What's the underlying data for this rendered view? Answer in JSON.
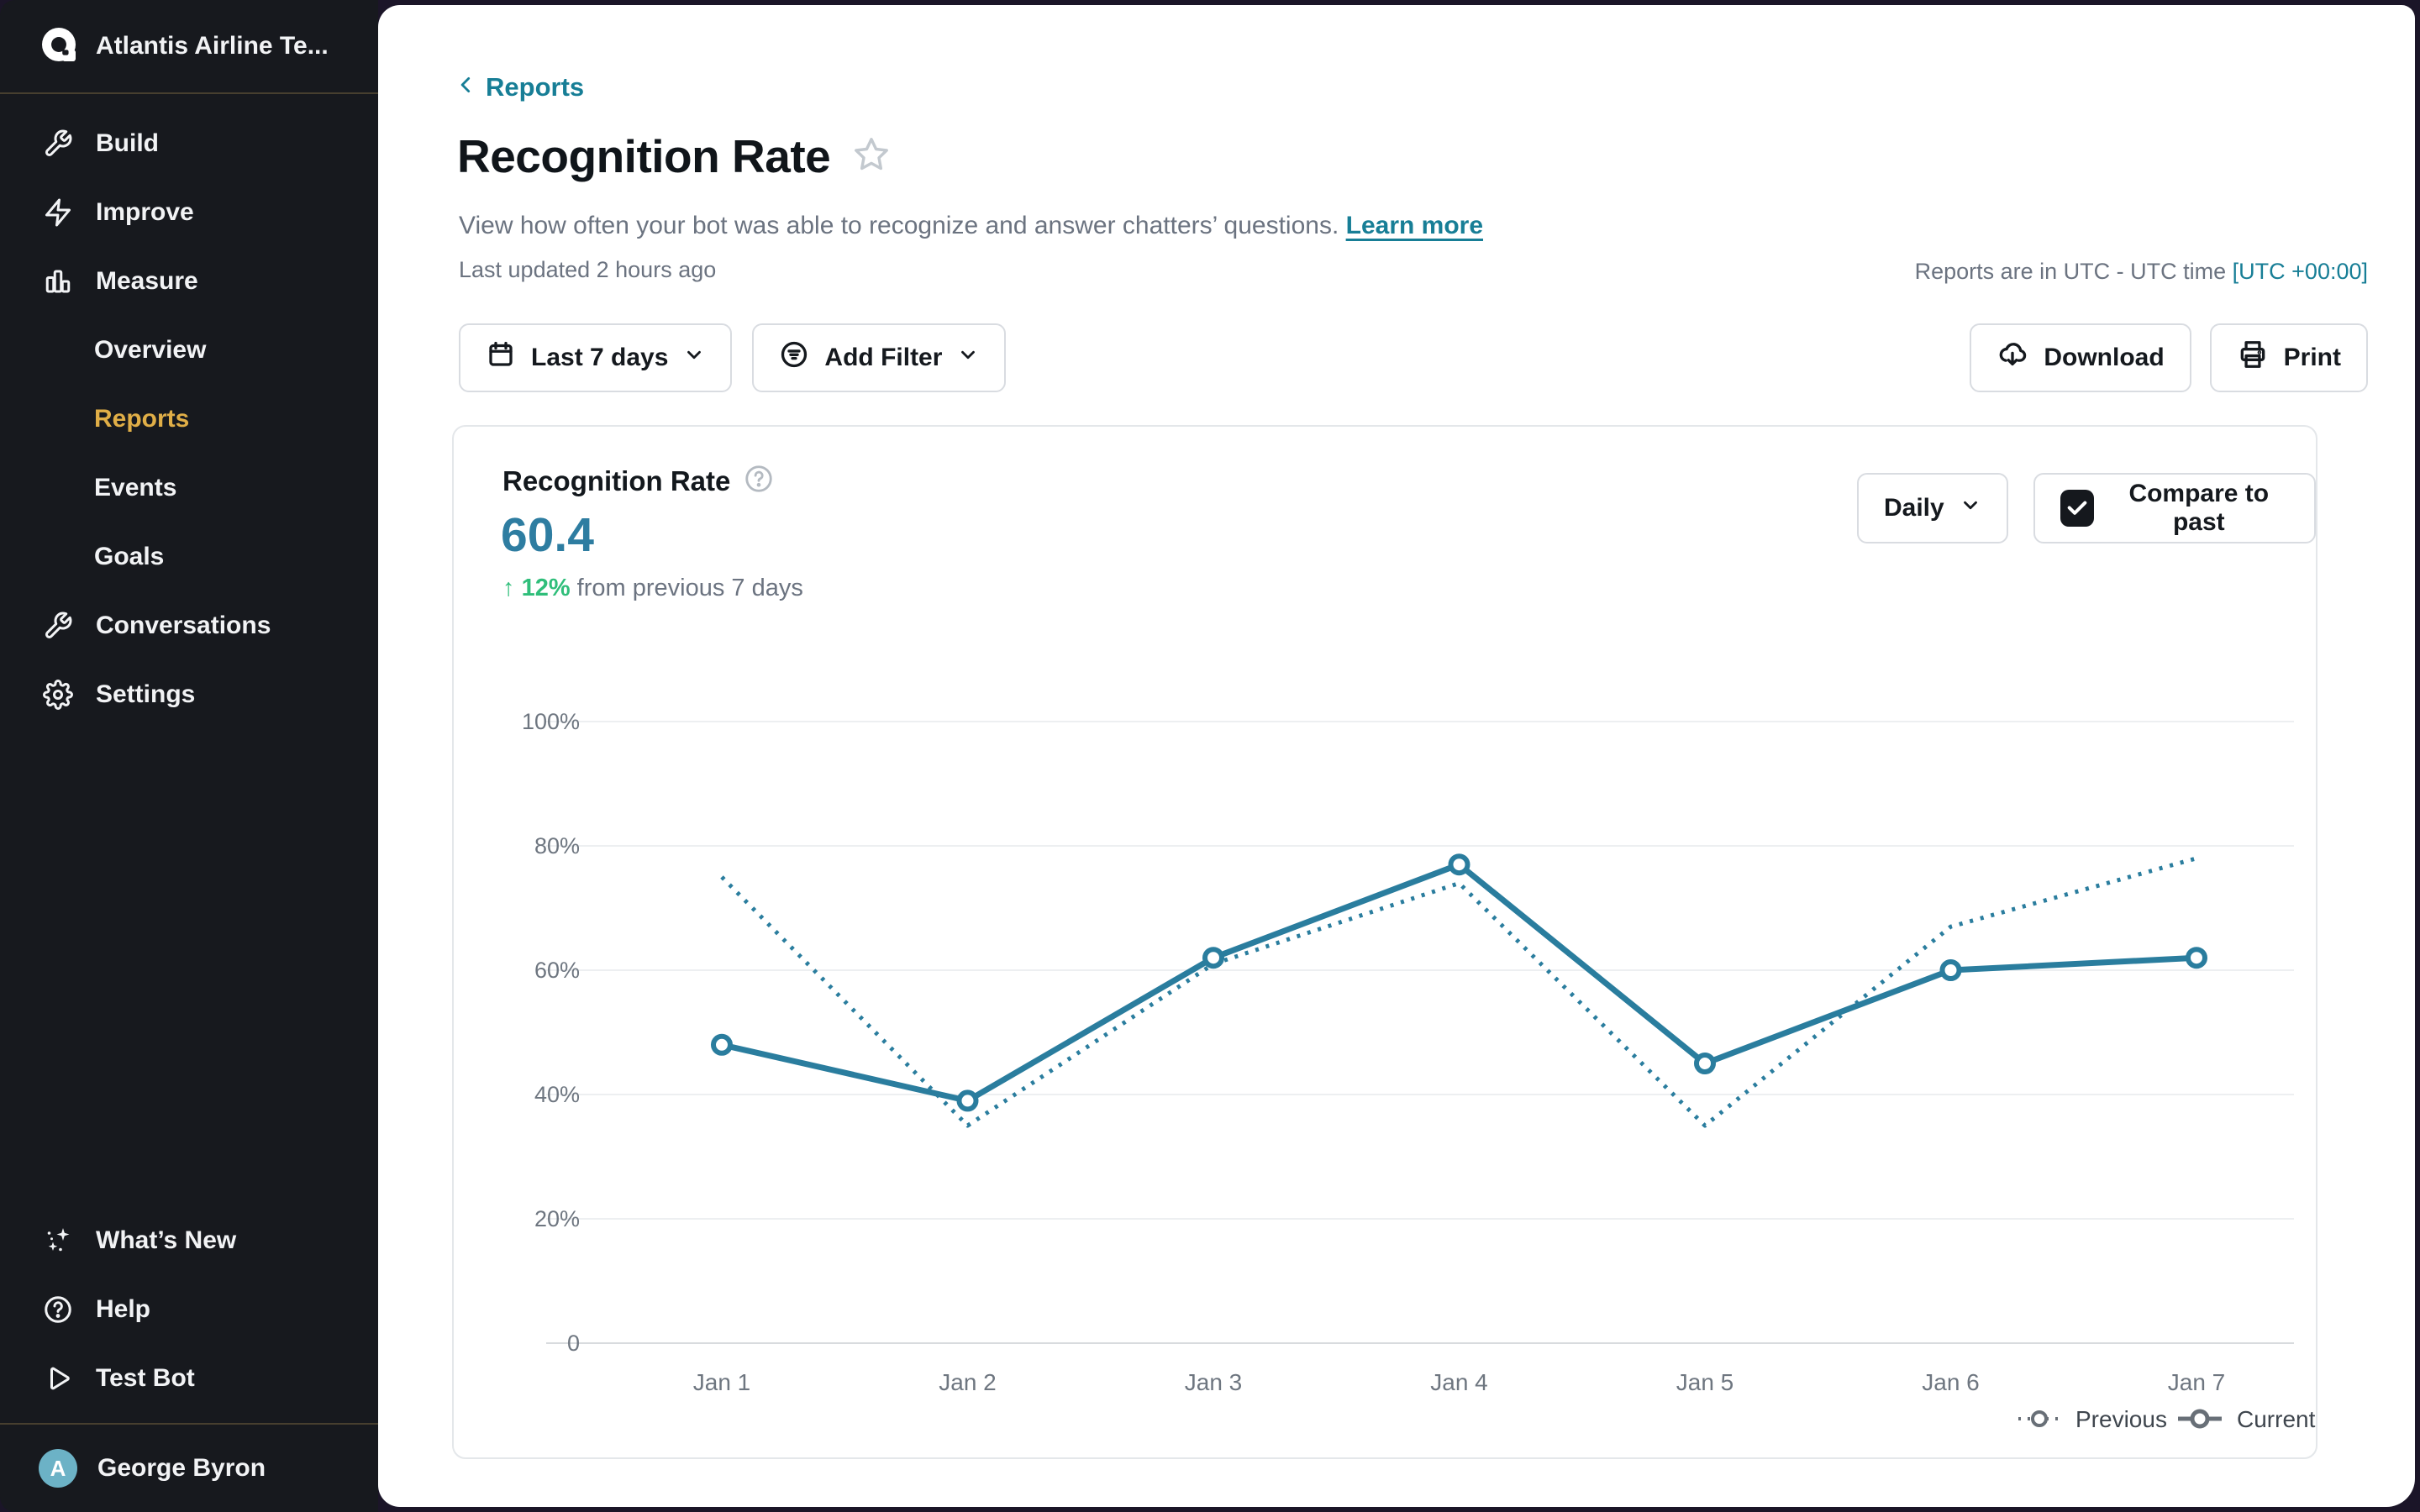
{
  "app": {
    "accent_teal": "#177e96",
    "accent_gold": "#e0ae47",
    "green": "#2fbe7a",
    "value_teal": "#2e7da1"
  },
  "sidebar": {
    "team_name": "Atlantis Airline Te...",
    "items": [
      {
        "label": "Build",
        "icon": "wrench-icon"
      },
      {
        "label": "Improve",
        "icon": "bolt-icon"
      },
      {
        "label": "Measure",
        "icon": "bar-chart-icon"
      },
      {
        "label": "Overview",
        "indent": true
      },
      {
        "label": "Reports",
        "indent": true,
        "active": true
      },
      {
        "label": "Events",
        "indent": true
      },
      {
        "label": "Goals",
        "indent": true
      },
      {
        "label": "Conversations",
        "icon": "wrench-icon"
      },
      {
        "label": "Settings",
        "icon": "gear-icon"
      }
    ],
    "footer_items": [
      {
        "label": "What’s New",
        "icon": "sparkles-icon"
      },
      {
        "label": "Help",
        "icon": "help-circle-icon"
      },
      {
        "label": "Test Bot",
        "icon": "play-icon"
      }
    ],
    "user": {
      "name": "George Byron",
      "initial": "A"
    }
  },
  "header": {
    "breadcrumb": "Reports",
    "title": "Recognition Rate",
    "description": "View how often your bot was able to recognize and answer chatters’ questions.",
    "learn_more": "Learn more",
    "last_updated": "Last updated 2 hours ago",
    "timezone_note": "Reports are in UTC - UTC time",
    "timezone_link": "[UTC +00:00]"
  },
  "toolbar": {
    "date_range_label": "Last 7 days",
    "add_filter_label": "Add Filter",
    "download_label": "Download",
    "print_label": "Print"
  },
  "card": {
    "metric_title": "Recognition Rate",
    "metric_value": "60.4",
    "delta_arrow": "↑",
    "delta_value": "12%",
    "delta_text": "from previous 7 days",
    "granularity_label": "Daily",
    "compare_label": "Compare to past"
  },
  "chart_data": {
    "type": "line",
    "title": "Recognition Rate",
    "categories": [
      "Jan 1",
      "Jan 2",
      "Jan 3",
      "Jan 4",
      "Jan 5",
      "Jan 6",
      "Jan 7"
    ],
    "series": [
      {
        "name": "Previous",
        "style": "dotted",
        "values": [
          75,
          35,
          61,
          74,
          35,
          67,
          78
        ]
      },
      {
        "name": "Current",
        "style": "solid",
        "values": [
          48,
          39,
          62,
          77,
          45,
          60,
          62
        ]
      }
    ],
    "ylim": [
      0,
      100
    ],
    "yticks": [
      "0",
      "20%",
      "40%",
      "60%",
      "80%",
      "100%"
    ],
    "grid": true,
    "legend_position": "bottom-right",
    "line_color": "#2a7d9e",
    "legend_color": "#686f77",
    "axis_text_color": "#6e7680",
    "grid_color": "#edeff1",
    "zero_line_color": "#d8dbde"
  }
}
